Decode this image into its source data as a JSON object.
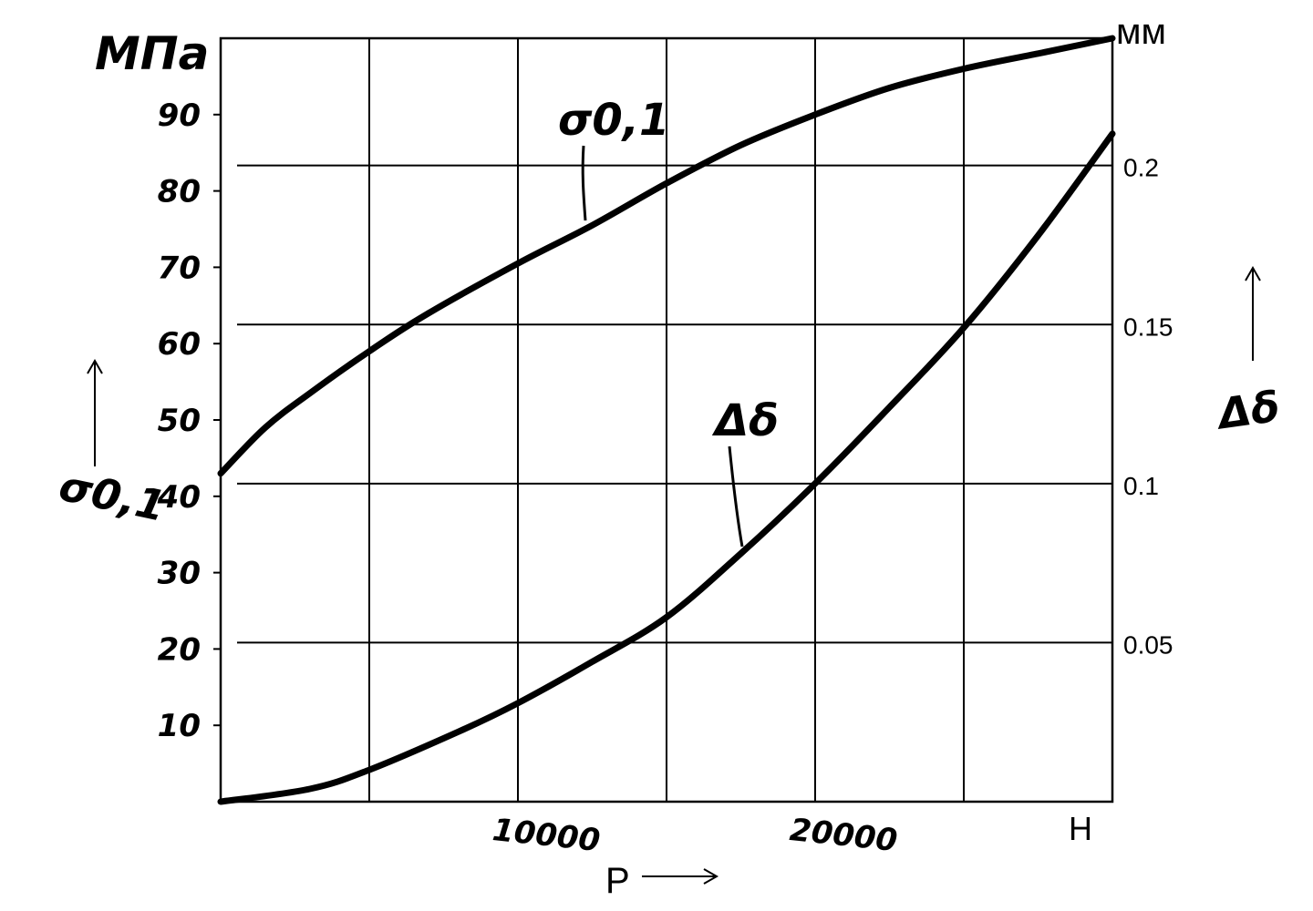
{
  "chart_data": {
    "type": "line",
    "x_axis": {
      "label": "P",
      "unit": "Н",
      "ticks": [
        10000,
        20000
      ],
      "tick_labels": [
        "10000",
        "20000"
      ],
      "range": [
        0,
        30000
      ]
    },
    "y_left": {
      "label": "σ0,1",
      "unit": "МПа",
      "ticks": [
        10,
        20,
        30,
        40,
        50,
        60,
        70,
        80,
        90
      ],
      "tick_labels": [
        "10",
        "20",
        "30",
        "40",
        "50",
        "60",
        "70",
        "80",
        "90"
      ],
      "range": [
        0,
        100
      ]
    },
    "y_right": {
      "label": "Δδ",
      "unit": "мм",
      "ticks": [
        0.05,
        0.1,
        0.15,
        0.2
      ],
      "tick_labels": [
        "0.05",
        "0.1",
        "0.15",
        "0.2"
      ],
      "range": [
        0,
        0.24
      ]
    },
    "grid": true,
    "series": [
      {
        "name": "σ0,1",
        "axis": "left",
        "x": [
          0,
          1500,
          3000,
          5000,
          7000,
          10000,
          12500,
          15000,
          17500,
          20000,
          22500,
          25000,
          27500,
          30000
        ],
        "y": [
          43,
          49,
          53.5,
          59,
          64,
          70.5,
          75.5,
          81,
          86,
          90,
          93.5,
          96,
          98,
          100
        ]
      },
      {
        "name": "Δδ",
        "axis": "right",
        "x": [
          0,
          3000,
          5000,
          8000,
          10000,
          12500,
          15000,
          17500,
          20000,
          22500,
          25000,
          27500,
          30000
        ],
        "y": [
          0,
          0.004,
          0.01,
          0.022,
          0.031,
          0.044,
          0.058,
          0.078,
          0.1,
          0.124,
          0.149,
          0.178,
          0.21
        ]
      }
    ],
    "annotations": [
      "σ0,1",
      "Δδ"
    ]
  }
}
